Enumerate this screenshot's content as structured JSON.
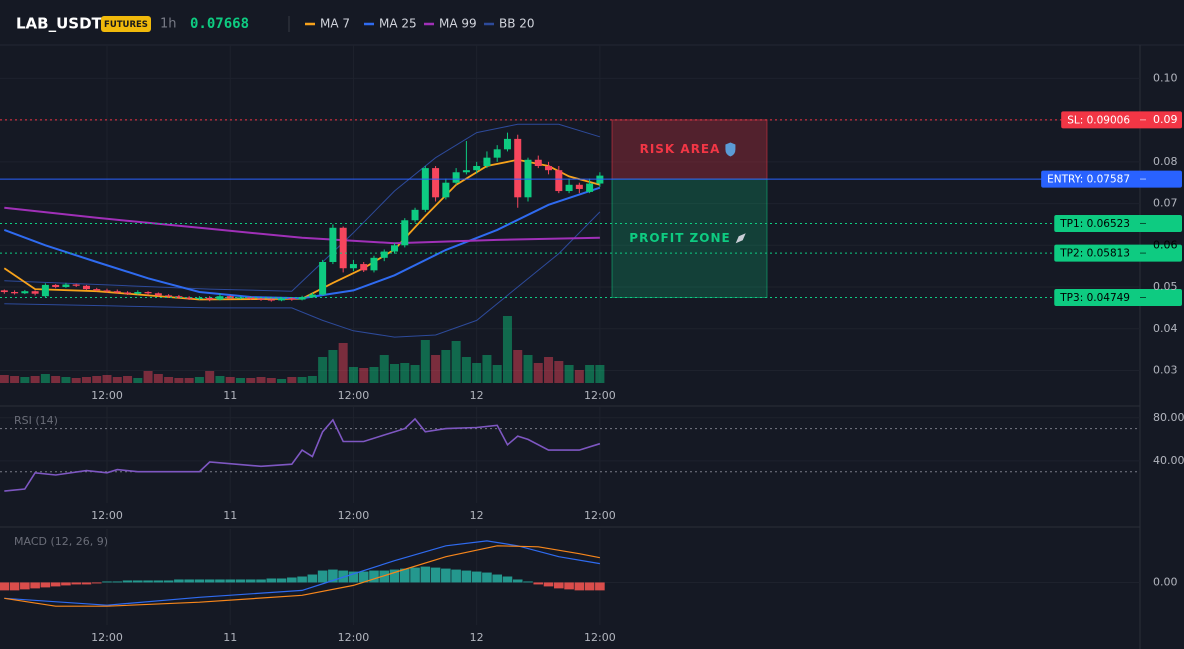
{
  "header": {
    "symbol": "LAB_USDT",
    "badge": "FUTURES",
    "interval": "1h",
    "price": 0.07668
  },
  "chart_data": [
    {
      "type": "candlestick",
      "xlim": [
        -0.42,
        110.6
      ],
      "xticks": [
        {
          "value": 10,
          "label": "12:00"
        },
        {
          "value": 22,
          "label": "11"
        },
        {
          "value": 34,
          "label": "12:00"
        },
        {
          "value": 46,
          "label": "12"
        },
        {
          "value": 58,
          "label": "12:00"
        }
      ],
      "ylim": [
        0.027,
        0.108
      ],
      "yticks": [
        0.03,
        0.04,
        0.05,
        0.06,
        0.07,
        0.08,
        0.09,
        {
          "value": 0.1,
          "label": "0.10"
        }
      ],
      "grid": true,
      "up_color": "#0ecb81",
      "down_color": "#f6465d",
      "candles": [
        [
          0.0492,
          0.0494,
          0.0484,
          0.0488
        ],
        [
          0.0488,
          0.0492,
          0.0482,
          0.0485
        ],
        [
          0.0485,
          0.0493,
          0.0483,
          0.049
        ],
        [
          0.049,
          0.0492,
          0.048,
          0.0484
        ],
        [
          0.0478,
          0.0509,
          0.0476,
          0.0505
        ],
        [
          0.0505,
          0.0507,
          0.0497,
          0.05
        ],
        [
          0.05,
          0.051,
          0.0498,
          0.0506
        ],
        [
          0.0506,
          0.0508,
          0.05,
          0.0503
        ],
        [
          0.0503,
          0.0505,
          0.0493,
          0.0495
        ],
        [
          0.0495,
          0.0498,
          0.049,
          0.0492
        ],
        [
          0.0492,
          0.0496,
          0.0486,
          0.049
        ],
        [
          0.049,
          0.0494,
          0.0484,
          0.0487
        ],
        [
          0.0487,
          0.049,
          0.0481,
          0.0484
        ],
        [
          0.0484,
          0.0492,
          0.0482,
          0.0488
        ],
        [
          0.0488,
          0.049,
          0.048,
          0.0485
        ],
        [
          0.0485,
          0.0487,
          0.0477,
          0.048
        ],
        [
          0.048,
          0.0483,
          0.0475,
          0.0478
        ],
        [
          0.0478,
          0.0481,
          0.0472,
          0.0475
        ],
        [
          0.0475,
          0.0478,
          0.0469,
          0.0472
        ],
        [
          0.0472,
          0.0478,
          0.0469,
          0.0474
        ],
        [
          0.0474,
          0.0478,
          0.0466,
          0.047
        ],
        [
          0.047,
          0.0485,
          0.0468,
          0.0478
        ],
        [
          0.0478,
          0.048,
          0.0471,
          0.0473
        ],
        [
          0.0473,
          0.0478,
          0.0471,
          0.0475
        ],
        [
          0.0475,
          0.0477,
          0.0469,
          0.0472
        ],
        [
          0.0472,
          0.0474,
          0.0467,
          0.047
        ],
        [
          0.047,
          0.0472,
          0.0465,
          0.0468
        ],
        [
          0.0468,
          0.0476,
          0.0466,
          0.0473
        ],
        [
          0.0473,
          0.0475,
          0.0467,
          0.047
        ],
        [
          0.047,
          0.0479,
          0.0468,
          0.0476
        ],
        [
          0.0476,
          0.0486,
          0.0474,
          0.0482
        ],
        [
          0.0482,
          0.0565,
          0.048,
          0.056
        ],
        [
          0.056,
          0.065,
          0.0555,
          0.0642
        ],
        [
          0.0642,
          0.0645,
          0.0535,
          0.0545
        ],
        [
          0.0545,
          0.0565,
          0.0538,
          0.0555
        ],
        [
          0.0555,
          0.056,
          0.0536,
          0.054
        ],
        [
          0.054,
          0.0575,
          0.0535,
          0.057
        ],
        [
          0.057,
          0.059,
          0.0562,
          0.0585
        ],
        [
          0.0585,
          0.0605,
          0.058,
          0.06
        ],
        [
          0.06,
          0.0665,
          0.0595,
          0.066
        ],
        [
          0.066,
          0.069,
          0.0655,
          0.0685
        ],
        [
          0.0685,
          0.079,
          0.068,
          0.0785
        ],
        [
          0.0785,
          0.079,
          0.0705,
          0.0715
        ],
        [
          0.0715,
          0.076,
          0.071,
          0.075
        ],
        [
          0.075,
          0.0785,
          0.0745,
          0.0775
        ],
        [
          0.0775,
          0.085,
          0.077,
          0.078
        ],
        [
          0.078,
          0.08,
          0.0772,
          0.079
        ],
        [
          0.079,
          0.0825,
          0.0785,
          0.081
        ],
        [
          0.081,
          0.084,
          0.08,
          0.083
        ],
        [
          0.083,
          0.087,
          0.0825,
          0.0855
        ],
        [
          0.0855,
          0.0865,
          0.069,
          0.0715
        ],
        [
          0.0715,
          0.081,
          0.0705,
          0.0805
        ],
        [
          0.0805,
          0.0815,
          0.0785,
          0.079
        ],
        [
          0.079,
          0.08,
          0.077,
          0.078
        ],
        [
          0.078,
          0.079,
          0.0725,
          0.073
        ],
        [
          0.073,
          0.076,
          0.0725,
          0.0745
        ],
        [
          0.0745,
          0.075,
          0.0725,
          0.0735
        ],
        [
          0.0728,
          0.076,
          0.0725,
          0.0748
        ],
        [
          0.0748,
          0.0775,
          0.074,
          0.0767
        ]
      ],
      "volume": [
        8,
        7,
        6,
        7,
        9,
        7,
        6,
        5,
        6,
        7,
        8,
        6,
        7,
        5,
        12,
        9,
        6,
        5,
        5,
        6,
        12,
        7,
        6,
        5,
        5,
        6,
        5,
        4,
        6,
        6,
        7,
        26,
        33,
        40,
        16,
        15,
        16,
        28,
        19,
        20,
        18,
        43,
        28,
        33,
        42,
        26,
        20,
        28,
        18,
        67,
        33,
        28,
        20,
        26,
        22,
        18,
        13,
        18,
        18
      ],
      "volume_lim": [
        0,
        100
      ],
      "series": [
        {
          "name": "MA 7",
          "color": "#f7a21b",
          "x": [
            0,
            3,
            9,
            19,
            29,
            32,
            35,
            38,
            41,
            44,
            47,
            50,
            53,
            55,
            58
          ],
          "values": [
            0.0545,
            0.0495,
            0.049,
            0.047,
            0.0472,
            0.051,
            0.0545,
            0.059,
            0.067,
            0.0745,
            0.079,
            0.0805,
            0.079,
            0.0765,
            0.0745
          ]
        },
        {
          "name": "MA 25",
          "color": "#2f6bf0",
          "x": [
            0,
            4,
            9,
            14,
            19,
            24,
            29,
            34,
            38,
            43,
            48,
            53,
            58
          ],
          "values": [
            0.0637,
            0.06,
            0.056,
            0.0521,
            0.0488,
            0.0476,
            0.0473,
            0.0492,
            0.0528,
            0.0589,
            0.0637,
            0.0697,
            0.0738
          ]
        },
        {
          "name": "MA 99",
          "color": "#a030b8",
          "x": [
            0,
            9,
            19,
            29,
            38,
            48,
            58
          ],
          "values": [
            0.069,
            0.0666,
            0.0642,
            0.0618,
            0.0605,
            0.0613,
            0.0618
          ]
        },
        {
          "name": "BB 20",
          "color": "#2d4a9a",
          "x": [
            0,
            10,
            20,
            28,
            31,
            34,
            38,
            42,
            46,
            50,
            54,
            58
          ],
          "upper": [
            0.0515,
            0.0505,
            0.0495,
            0.049,
            0.056,
            0.063,
            0.073,
            0.081,
            0.087,
            0.089,
            0.089,
            0.086
          ],
          "lower": [
            0.046,
            0.0455,
            0.045,
            0.045,
            0.042,
            0.0395,
            0.038,
            0.0385,
            0.042,
            0.05,
            0.058,
            0.068
          ]
        }
      ],
      "levels": [
        {
          "label": "SL: 0.09006",
          "value": 0.09006,
          "color": "#f23645",
          "text_color": "#ffffff",
          "style": "dotted"
        },
        {
          "label": "ENTRY: 0.07587",
          "value": 0.07587,
          "color": "#2962ff",
          "text_color": "#ffffff",
          "style": "solid"
        },
        {
          "label": "TP1: 0.06523",
          "value": 0.06523,
          "color": "#0ecb81",
          "text_color": "#000000",
          "style": "dotted"
        },
        {
          "label": "TP2: 0.05813",
          "value": 0.05813,
          "color": "#0ecb81",
          "text_color": "#000000",
          "style": "dotted"
        },
        {
          "label": "TP3: 0.04749",
          "value": 0.04749,
          "color": "#0ecb81",
          "text_color": "#000000",
          "style": "dotted"
        }
      ],
      "zones": [
        {
          "label": "RISK AREA",
          "from": 0.09006,
          "to": 0.07587,
          "color": "#f23645"
        },
        {
          "label": "PROFIT ZONE",
          "from": 0.07587,
          "to": 0.04749,
          "color": "#0ecb81"
        }
      ]
    },
    {
      "type": "line",
      "title": "RSI (14)",
      "xlim": [
        -0.42,
        110.6
      ],
      "xticks": [
        {
          "value": 10,
          "label": "12:00"
        },
        {
          "value": 22,
          "label": "11"
        },
        {
          "value": 34,
          "label": "12:00"
        },
        {
          "value": 46,
          "label": "12"
        },
        {
          "value": 58,
          "label": "12:00"
        }
      ],
      "ylim": [
        1,
        90
      ],
      "yticks": [
        {
          "value": 40,
          "label": "40.00"
        },
        {
          "value": 80,
          "label": "80.00"
        }
      ],
      "levels": [
        70,
        30
      ],
      "color": "#7e57c2",
      "x": [
        0,
        2,
        3,
        5,
        8,
        10,
        11,
        13,
        19,
        20,
        25,
        28,
        29,
        30,
        31,
        32,
        33,
        35,
        37,
        39,
        40,
        41,
        43,
        46,
        48,
        49,
        50,
        51,
        53,
        56,
        58
      ],
      "values": [
        12,
        14,
        29,
        27,
        31,
        29,
        32,
        30,
        30,
        39,
        35,
        37,
        50,
        44,
        67,
        78,
        58,
        58,
        64,
        70,
        79,
        67,
        70,
        71,
        73,
        55,
        63,
        60,
        50,
        50,
        56
      ]
    },
    {
      "type": "macd",
      "title": "MACD (12, 26, 9)",
      "xlim": [
        -0.42,
        110.6
      ],
      "xticks": [
        {
          "value": 10,
          "label": "12:00"
        },
        {
          "value": 22,
          "label": "11"
        },
        {
          "value": 34,
          "label": "12:00"
        },
        {
          "value": 46,
          "label": "12"
        },
        {
          "value": 58,
          "label": "12:00"
        }
      ],
      "ylim": [
        -0.00043,
        0.00054
      ],
      "yticks": [
        {
          "value": 0,
          "label": "0.00"
        }
      ],
      "up_color": "#26a69a",
      "down_color": "#ef5350",
      "histogram": [
        -8e-05,
        -8e-05,
        -7e-05,
        -6e-05,
        -5e-05,
        -4e-05,
        -3e-05,
        -2e-05,
        -2e-05,
        -1e-05,
        1e-05,
        1e-05,
        2e-05,
        2e-05,
        2e-05,
        2e-05,
        2e-05,
        3e-05,
        3e-05,
        3e-05,
        3e-05,
        3e-05,
        3e-05,
        3e-05,
        3e-05,
        3e-05,
        4e-05,
        4e-05,
        5e-05,
        6e-05,
        8e-05,
        0.00012,
        0.00013,
        0.00012,
        0.00011,
        0.00011,
        0.00012,
        0.00012,
        0.00013,
        0.00014,
        0.00015,
        0.00016,
        0.00015,
        0.00014,
        0.00013,
        0.00012,
        0.00011,
        0.0001,
        8e-05,
        6e-05,
        3e-05,
        1e-05,
        -2e-05,
        -4e-05,
        -6e-05,
        -7e-05,
        -8e-05,
        -8e-05,
        -8e-05
      ],
      "series": [
        {
          "color": "#2f6bf0",
          "x": [
            0,
            10,
            19,
            29,
            32,
            38,
            43,
            47,
            50,
            54,
            58
          ],
          "values": [
            -0.00016,
            -0.00023,
            -0.00015,
            -8e-05,
            2e-05,
            0.00022,
            0.00037,
            0.00042,
            0.00037,
            0.00026,
            0.00019
          ]
        },
        {
          "color": "#f7861b",
          "x": [
            0,
            5,
            10,
            19,
            29,
            34,
            38,
            43,
            48,
            52,
            56,
            58
          ],
          "values": [
            -0.00016,
            -0.00024,
            -0.00024,
            -0.0002,
            -0.00013,
            -3e-05,
            0.0001,
            0.00026,
            0.00037,
            0.00036,
            0.00029,
            0.00025
          ]
        }
      ]
    }
  ]
}
